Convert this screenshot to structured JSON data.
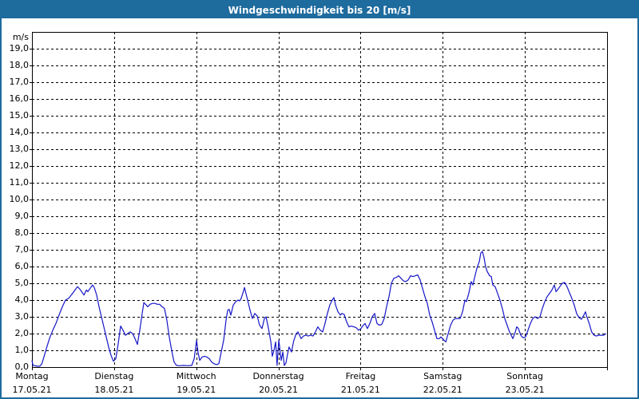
{
  "window": {
    "title": "Windgeschwindigkeit bis 20 [m/s]"
  },
  "colors": {
    "frame_accent": "#1e6b9e",
    "title_text": "#ffffff",
    "plot_background": "#ffffff",
    "grid": "#000000",
    "axis": "#000000",
    "series_line": "#1616c8"
  },
  "chart_data": {
    "type": "line",
    "title": "Windgeschwindigkeit bis 20 [m/s]",
    "ylabel_unit": "m/s",
    "ylim": [
      0,
      20
    ],
    "y_tick_step": 1.0,
    "y_tick_labels": [
      "19,0",
      "18,0",
      "17,0",
      "16,0",
      "15,0",
      "14,0",
      "13,0",
      "12,0",
      "11,0",
      "10,0",
      "9,0",
      "8,0",
      "7,0",
      "6,0",
      "5,0",
      "4,0",
      "3,0",
      "2,0",
      "1,0",
      "0,0"
    ],
    "grid": "dashed",
    "x_hours_total": 168,
    "x_days": [
      {
        "name": "Montag",
        "date": "17.05.21"
      },
      {
        "name": "Dienstag",
        "date": "18.05.21"
      },
      {
        "name": "Mittwoch",
        "date": "19.05.21"
      },
      {
        "name": "Donnerstag",
        "date": "20.05.21"
      },
      {
        "name": "Freitag",
        "date": "21.05.21"
      },
      {
        "name": "Samstag",
        "date": "22.05.21"
      },
      {
        "name": "Sonntag",
        "date": "23.05.21"
      }
    ],
    "series": [
      {
        "name": "Windgeschwindigkeit",
        "unit": "m/s",
        "color": "#1616c8",
        "points": [
          [
            0,
            0.4
          ],
          [
            0.3,
            0.1
          ],
          [
            1.5,
            0.05
          ],
          [
            2.3,
            0.05
          ],
          [
            2.9,
            0.2
          ],
          [
            3.5,
            0.6
          ],
          [
            4.2,
            1.1
          ],
          [
            5.1,
            1.7
          ],
          [
            6.1,
            2.2
          ],
          [
            7,
            2.6
          ],
          [
            7.9,
            3.1
          ],
          [
            8.9,
            3.6
          ],
          [
            9.8,
            4
          ],
          [
            10.7,
            4.1
          ],
          [
            11.7,
            4.35
          ],
          [
            12.6,
            4.6
          ],
          [
            13.3,
            4.8
          ],
          [
            14,
            4.65
          ],
          [
            14.7,
            4.45
          ],
          [
            15.2,
            4.3
          ],
          [
            15.9,
            4.6
          ],
          [
            16.3,
            4.5
          ],
          [
            17,
            4.7
          ],
          [
            17.7,
            4.9
          ],
          [
            18.2,
            4.75
          ],
          [
            18.9,
            4.3
          ],
          [
            19.6,
            3.6
          ],
          [
            20.3,
            3
          ],
          [
            21,
            2.4
          ],
          [
            21.7,
            1.8
          ],
          [
            22.4,
            1.2
          ],
          [
            23.1,
            0.7
          ],
          [
            23.8,
            0.35
          ],
          [
            24.5,
            0.5
          ],
          [
            25.2,
            1.4
          ],
          [
            25.9,
            2.45
          ],
          [
            26.6,
            2.2
          ],
          [
            27.3,
            1.9
          ],
          [
            28,
            2
          ],
          [
            28.7,
            2.1
          ],
          [
            29.4,
            2
          ],
          [
            30.1,
            1.7
          ],
          [
            30.8,
            1.35
          ],
          [
            31.5,
            2.2
          ],
          [
            32.2,
            3.2
          ],
          [
            32.7,
            3.85
          ],
          [
            33.4,
            3.7
          ],
          [
            33.8,
            3.6
          ],
          [
            34.5,
            3.75
          ],
          [
            35.2,
            3.8
          ],
          [
            35.9,
            3.8
          ],
          [
            36.6,
            3.75
          ],
          [
            37.3,
            3.75
          ],
          [
            38,
            3.6
          ],
          [
            38.7,
            3.5
          ],
          [
            39.4,
            2.8
          ],
          [
            40.1,
            1.8
          ],
          [
            40.8,
            1
          ],
          [
            41.5,
            0.3
          ],
          [
            42.2,
            0.1
          ],
          [
            43.2,
            0.08
          ],
          [
            44.3,
            0.1
          ],
          [
            45.5,
            0.08
          ],
          [
            46.7,
            0.1
          ],
          [
            47.4,
            0.5
          ],
          [
            48.1,
            1.6
          ],
          [
            48.5,
            0.9
          ],
          [
            49,
            0.4
          ],
          [
            49.7,
            0.6
          ],
          [
            50.4,
            0.65
          ],
          [
            51.1,
            0.6
          ],
          [
            51.8,
            0.5
          ],
          [
            52.5,
            0.3
          ],
          [
            53.2,
            0.2
          ],
          [
            53.9,
            0.15
          ],
          [
            54.6,
            0.2
          ],
          [
            55.3,
            0.9
          ],
          [
            56,
            1.6
          ],
          [
            56.7,
            2.8
          ],
          [
            57.2,
            3.4
          ],
          [
            57.6,
            3.45
          ],
          [
            58.1,
            3.1
          ],
          [
            58.8,
            3.7
          ],
          [
            59.5,
            3.9
          ],
          [
            60.2,
            4
          ],
          [
            60.7,
            3.95
          ],
          [
            61.1,
            4.1
          ],
          [
            61.6,
            4.4
          ],
          [
            62.1,
            4.75
          ],
          [
            62.5,
            4.4
          ],
          [
            63,
            4
          ],
          [
            63.7,
            3.4
          ],
          [
            64.4,
            2.9
          ],
          [
            65.1,
            3.2
          ],
          [
            65.8,
            3.05
          ],
          [
            66.5,
            2.5
          ],
          [
            67.2,
            2.3
          ],
          [
            67.9,
            2.9
          ],
          [
            68.4,
            3
          ],
          [
            69.1,
            2.3
          ],
          [
            69.8,
            1.5
          ],
          [
            70.2,
            0.65
          ],
          [
            70.7,
            1
          ],
          [
            71.2,
            1.5
          ],
          [
            71.6,
            0.1
          ],
          [
            72.1,
            1.6
          ],
          [
            72.3,
            1.3
          ],
          [
            72.8,
            0.4
          ],
          [
            73.3,
            0.9
          ],
          [
            73.7,
            0.1
          ],
          [
            74.2,
            0.25
          ],
          [
            74.7,
            0.8
          ],
          [
            75.1,
            1.2
          ],
          [
            75.8,
            0.9
          ],
          [
            76.5,
            1.6
          ],
          [
            77.2,
            2
          ],
          [
            77.7,
            2.1
          ],
          [
            78.2,
            1.9
          ],
          [
            78.6,
            1.7
          ],
          [
            79.3,
            1.85
          ],
          [
            80,
            1.9
          ],
          [
            80.7,
            1.85
          ],
          [
            81.4,
            1.9
          ],
          [
            82.1,
            1.85
          ],
          [
            82.8,
            2.1
          ],
          [
            83.5,
            2.4
          ],
          [
            84.2,
            2.2
          ],
          [
            84.9,
            2.1
          ],
          [
            85.6,
            2.6
          ],
          [
            86.3,
            3.2
          ],
          [
            87,
            3.7
          ],
          [
            87.7,
            4
          ],
          [
            88.2,
            4.15
          ],
          [
            88.7,
            3.7
          ],
          [
            89.4,
            3.3
          ],
          [
            90.1,
            3.1
          ],
          [
            90.5,
            3.2
          ],
          [
            91.2,
            3.15
          ],
          [
            91.9,
            2.7
          ],
          [
            92.6,
            2.4
          ],
          [
            93.3,
            2.45
          ],
          [
            94,
            2.4
          ],
          [
            94.7,
            2.35
          ],
          [
            95.4,
            2.2
          ],
          [
            96.1,
            2.3
          ],
          [
            96.8,
            2.5
          ],
          [
            97.3,
            2.6
          ],
          [
            98,
            2.3
          ],
          [
            98.7,
            2.6
          ],
          [
            99.4,
            3
          ],
          [
            100.1,
            3.2
          ],
          [
            100.8,
            2.6
          ],
          [
            101.5,
            2.5
          ],
          [
            102.2,
            2.55
          ],
          [
            102.9,
            2.9
          ],
          [
            103.6,
            3.6
          ],
          [
            104.3,
            4.2
          ],
          [
            105,
            5
          ],
          [
            105.7,
            5.3
          ],
          [
            106.4,
            5.35
          ],
          [
            107.1,
            5.45
          ],
          [
            107.8,
            5.3
          ],
          [
            108.5,
            5.15
          ],
          [
            109.2,
            5.1
          ],
          [
            109.9,
            5.2
          ],
          [
            110.6,
            5.45
          ],
          [
            111.3,
            5.4
          ],
          [
            112,
            5.45
          ],
          [
            112.7,
            5.5
          ],
          [
            113.4,
            5.2
          ],
          [
            114.1,
            4.7
          ],
          [
            114.8,
            4.2
          ],
          [
            115.5,
            3.8
          ],
          [
            116.2,
            3.1
          ],
          [
            116.9,
            2.7
          ],
          [
            117.6,
            2.2
          ],
          [
            118.3,
            1.7
          ],
          [
            119,
            1.7
          ],
          [
            119.5,
            1.8
          ],
          [
            120.4,
            1.6
          ],
          [
            120.9,
            1.5
          ],
          [
            121.6,
            2
          ],
          [
            122.3,
            2.5
          ],
          [
            123,
            2.8
          ],
          [
            123.7,
            2.9
          ],
          [
            124.4,
            2.9
          ],
          [
            125.1,
            2.9
          ],
          [
            125.8,
            3.3
          ],
          [
            126.5,
            4
          ],
          [
            126.9,
            3.9
          ],
          [
            127.6,
            4.4
          ],
          [
            128.3,
            5.1
          ],
          [
            128.8,
            4.9
          ],
          [
            129.5,
            5.5
          ],
          [
            130,
            5.9
          ],
          [
            130.7,
            6.3
          ],
          [
            131.1,
            6.8
          ],
          [
            131.6,
            6.9
          ],
          [
            132.1,
            6.5
          ],
          [
            132.5,
            6
          ],
          [
            133,
            5.7
          ],
          [
            133.7,
            5.45
          ],
          [
            134.2,
            5.4
          ],
          [
            134.6,
            4.9
          ],
          [
            135.3,
            4.8
          ],
          [
            136,
            4.4
          ],
          [
            136.7,
            4
          ],
          [
            137.4,
            3.5
          ],
          [
            138.1,
            2.9
          ],
          [
            138.8,
            2.5
          ],
          [
            139.5,
            2.1
          ],
          [
            140,
            1.9
          ],
          [
            140.5,
            1.7
          ],
          [
            141.2,
            2.1
          ],
          [
            141.6,
            2.4
          ],
          [
            142.1,
            2.3
          ],
          [
            142.8,
            1.9
          ],
          [
            143.5,
            1.75
          ],
          [
            144.2,
            1.8
          ],
          [
            144.9,
            2.2
          ],
          [
            145.6,
            2.6
          ],
          [
            146.3,
            2.9
          ],
          [
            147,
            3
          ],
          [
            147.7,
            2.9
          ],
          [
            148.4,
            3
          ],
          [
            149.1,
            3.5
          ],
          [
            149.8,
            3.9
          ],
          [
            150.5,
            4.2
          ],
          [
            151.2,
            4.4
          ],
          [
            151.9,
            4.6
          ],
          [
            152.6,
            4.9
          ],
          [
            153.1,
            4.5
          ],
          [
            153.5,
            4.6
          ],
          [
            154.2,
            4.8
          ],
          [
            154.9,
            5
          ],
          [
            155.6,
            5.05
          ],
          [
            156.3,
            4.8
          ],
          [
            157,
            4.45
          ],
          [
            157.7,
            4.1
          ],
          [
            158.4,
            3.7
          ],
          [
            159.1,
            3.2
          ],
          [
            159.8,
            2.95
          ],
          [
            160.5,
            2.85
          ],
          [
            161.2,
            3.1
          ],
          [
            161.7,
            3.3
          ],
          [
            162.1,
            3
          ],
          [
            162.8,
            2.6
          ],
          [
            163.5,
            2.1
          ],
          [
            164.2,
            1.9
          ],
          [
            164.9,
            1.85
          ],
          [
            165.6,
            1.9
          ],
          [
            166.3,
            1.9
          ],
          [
            167,
            1.9
          ],
          [
            167.7,
            2
          ]
        ]
      }
    ]
  }
}
